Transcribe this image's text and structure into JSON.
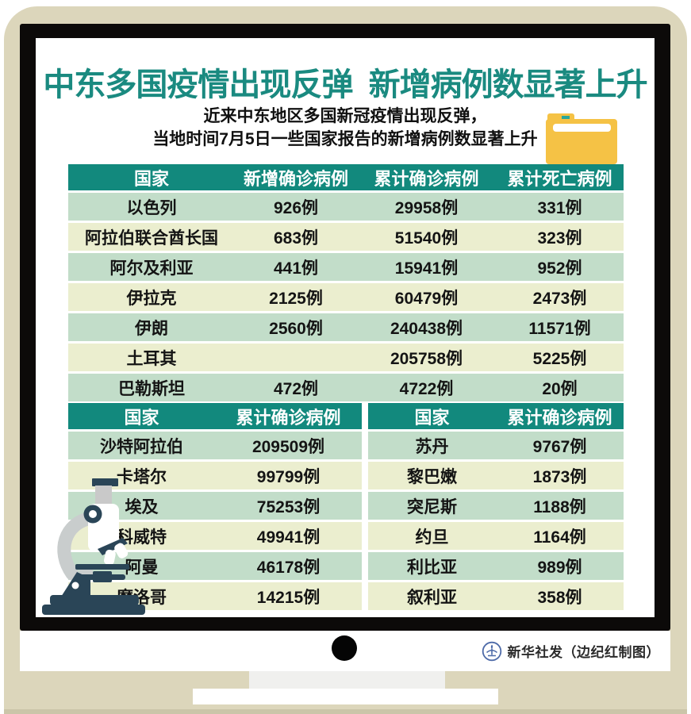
{
  "title": "中东多国疫情出现反弹  新增病例数显著上升",
  "subtitle_line1": "近来中东地区多国新冠疫情出现反弹，",
  "subtitle_line2": "当地时间7月5日一些国家报告的新增病例数显著上升",
  "credit": "新华社发（边纪红制图）",
  "icons": {
    "folder": "folder-icon",
    "microscope": "microscope-illustration",
    "camera": "camera-dot",
    "publisher_logo": "xinhua-emblem"
  },
  "colors": {
    "teal": "#12897d",
    "titleTeal": "#1a8a80",
    "rowGreen": "#c2ddc9",
    "rowYellow": "#ebeecf",
    "beige": "#dcd6bb",
    "beigeDark": "#cbc5a9",
    "frame": "#0c0a09",
    "stand": "#f0f0ee",
    "navy": "#2a4557",
    "armGray": "#c9cdcd",
    "folderYellow": "#f5c245",
    "folderTeal": "#2aa79b",
    "logoBlue": "#4d6aa8"
  },
  "tables": [
    {
      "headers": [
        "国家",
        "新增确诊病例",
        "累计确诊病例",
        "累计死亡病例"
      ],
      "rows": [
        [
          "以色列",
          "926例",
          "29958例",
          "331例"
        ],
        [
          "阿拉伯联合酋长国",
          "683例",
          "51540例",
          "323例"
        ],
        [
          "阿尔及利亚",
          "441例",
          "15941例",
          "952例"
        ],
        [
          "伊拉克",
          "2125例",
          "60479例",
          "2473例"
        ],
        [
          "伊朗",
          "2560例",
          "240438例",
          "11571例"
        ],
        [
          "土耳其",
          "",
          "205758例",
          "5225例"
        ],
        [
          "巴勒斯坦",
          "472例",
          "4722例",
          "20例"
        ]
      ]
    },
    {
      "headers": [
        "国家",
        "累计确诊病例"
      ],
      "rows": [
        [
          "沙特阿拉伯",
          "209509例"
        ],
        [
          "卡塔尔",
          "99799例"
        ],
        [
          "埃及",
          "75253例"
        ],
        [
          "科威特",
          "49941例"
        ],
        [
          "阿曼",
          "46178例"
        ],
        [
          "摩洛哥",
          "14215例"
        ]
      ]
    },
    {
      "headers": [
        "国家",
        "累计确诊病例"
      ],
      "rows": [
        [
          "苏丹",
          "9767例"
        ],
        [
          "黎巴嫩",
          "1873例"
        ],
        [
          "突尼斯",
          "1188例"
        ],
        [
          "约旦",
          "1164例"
        ],
        [
          "利比亚",
          "989例"
        ],
        [
          "叙利亚",
          "358例"
        ]
      ]
    }
  ],
  "chart_data": [
    {
      "type": "table",
      "title": "中东多国疫情出现反弹  新增病例数显著上升",
      "columns": [
        "国家",
        "新增确诊病例",
        "累计确诊病例",
        "累计死亡病例"
      ],
      "rows": [
        {
          "国家": "以色列",
          "新增确诊病例": 926,
          "累计确诊病例": 29958,
          "累计死亡病例": 331
        },
        {
          "国家": "阿拉伯联合酋长国",
          "新增确诊病例": 683,
          "累计确诊病例": 51540,
          "累计死亡病例": 323
        },
        {
          "国家": "阿尔及利亚",
          "新增确诊病例": 441,
          "累计确诊病例": 15941,
          "累计死亡病例": 952
        },
        {
          "国家": "伊拉克",
          "新增确诊病例": 2125,
          "累计确诊病例": 60479,
          "累计死亡病例": 2473
        },
        {
          "国家": "伊朗",
          "新增确诊病例": 2560,
          "累计确诊病例": 240438,
          "累计死亡病例": 11571
        },
        {
          "国家": "土耳其",
          "新增确诊病例": null,
          "累计确诊病例": 205758,
          "累计死亡病例": 5225
        },
        {
          "国家": "巴勒斯坦",
          "新增确诊病例": 472,
          "累计确诊病例": 4722,
          "累计死亡病例": 20
        }
      ]
    },
    {
      "type": "table",
      "columns": [
        "国家",
        "累计确诊病例"
      ],
      "rows": [
        {
          "国家": "沙特阿拉伯",
          "累计确诊病例": 209509
        },
        {
          "国家": "卡塔尔",
          "累计确诊病例": 99799
        },
        {
          "国家": "埃及",
          "累计确诊病例": 75253
        },
        {
          "国家": "科威特",
          "累计确诊病例": 49941
        },
        {
          "国家": "阿曼",
          "累计确诊病例": 46178
        },
        {
          "国家": "摩洛哥",
          "累计确诊病例": 14215
        }
      ]
    },
    {
      "type": "table",
      "columns": [
        "国家",
        "累计确诊病例"
      ],
      "rows": [
        {
          "国家": "苏丹",
          "累计确诊病例": 9767
        },
        {
          "国家": "黎巴嫩",
          "累计确诊病例": 1873
        },
        {
          "国家": "突尼斯",
          "累计确诊病例": 1188
        },
        {
          "国家": "约旦",
          "累计确诊病例": 1164
        },
        {
          "国家": "利比亚",
          "累计确诊病例": 989
        },
        {
          "国家": "叙利亚",
          "累计确诊病例": 358
        }
      ]
    }
  ]
}
